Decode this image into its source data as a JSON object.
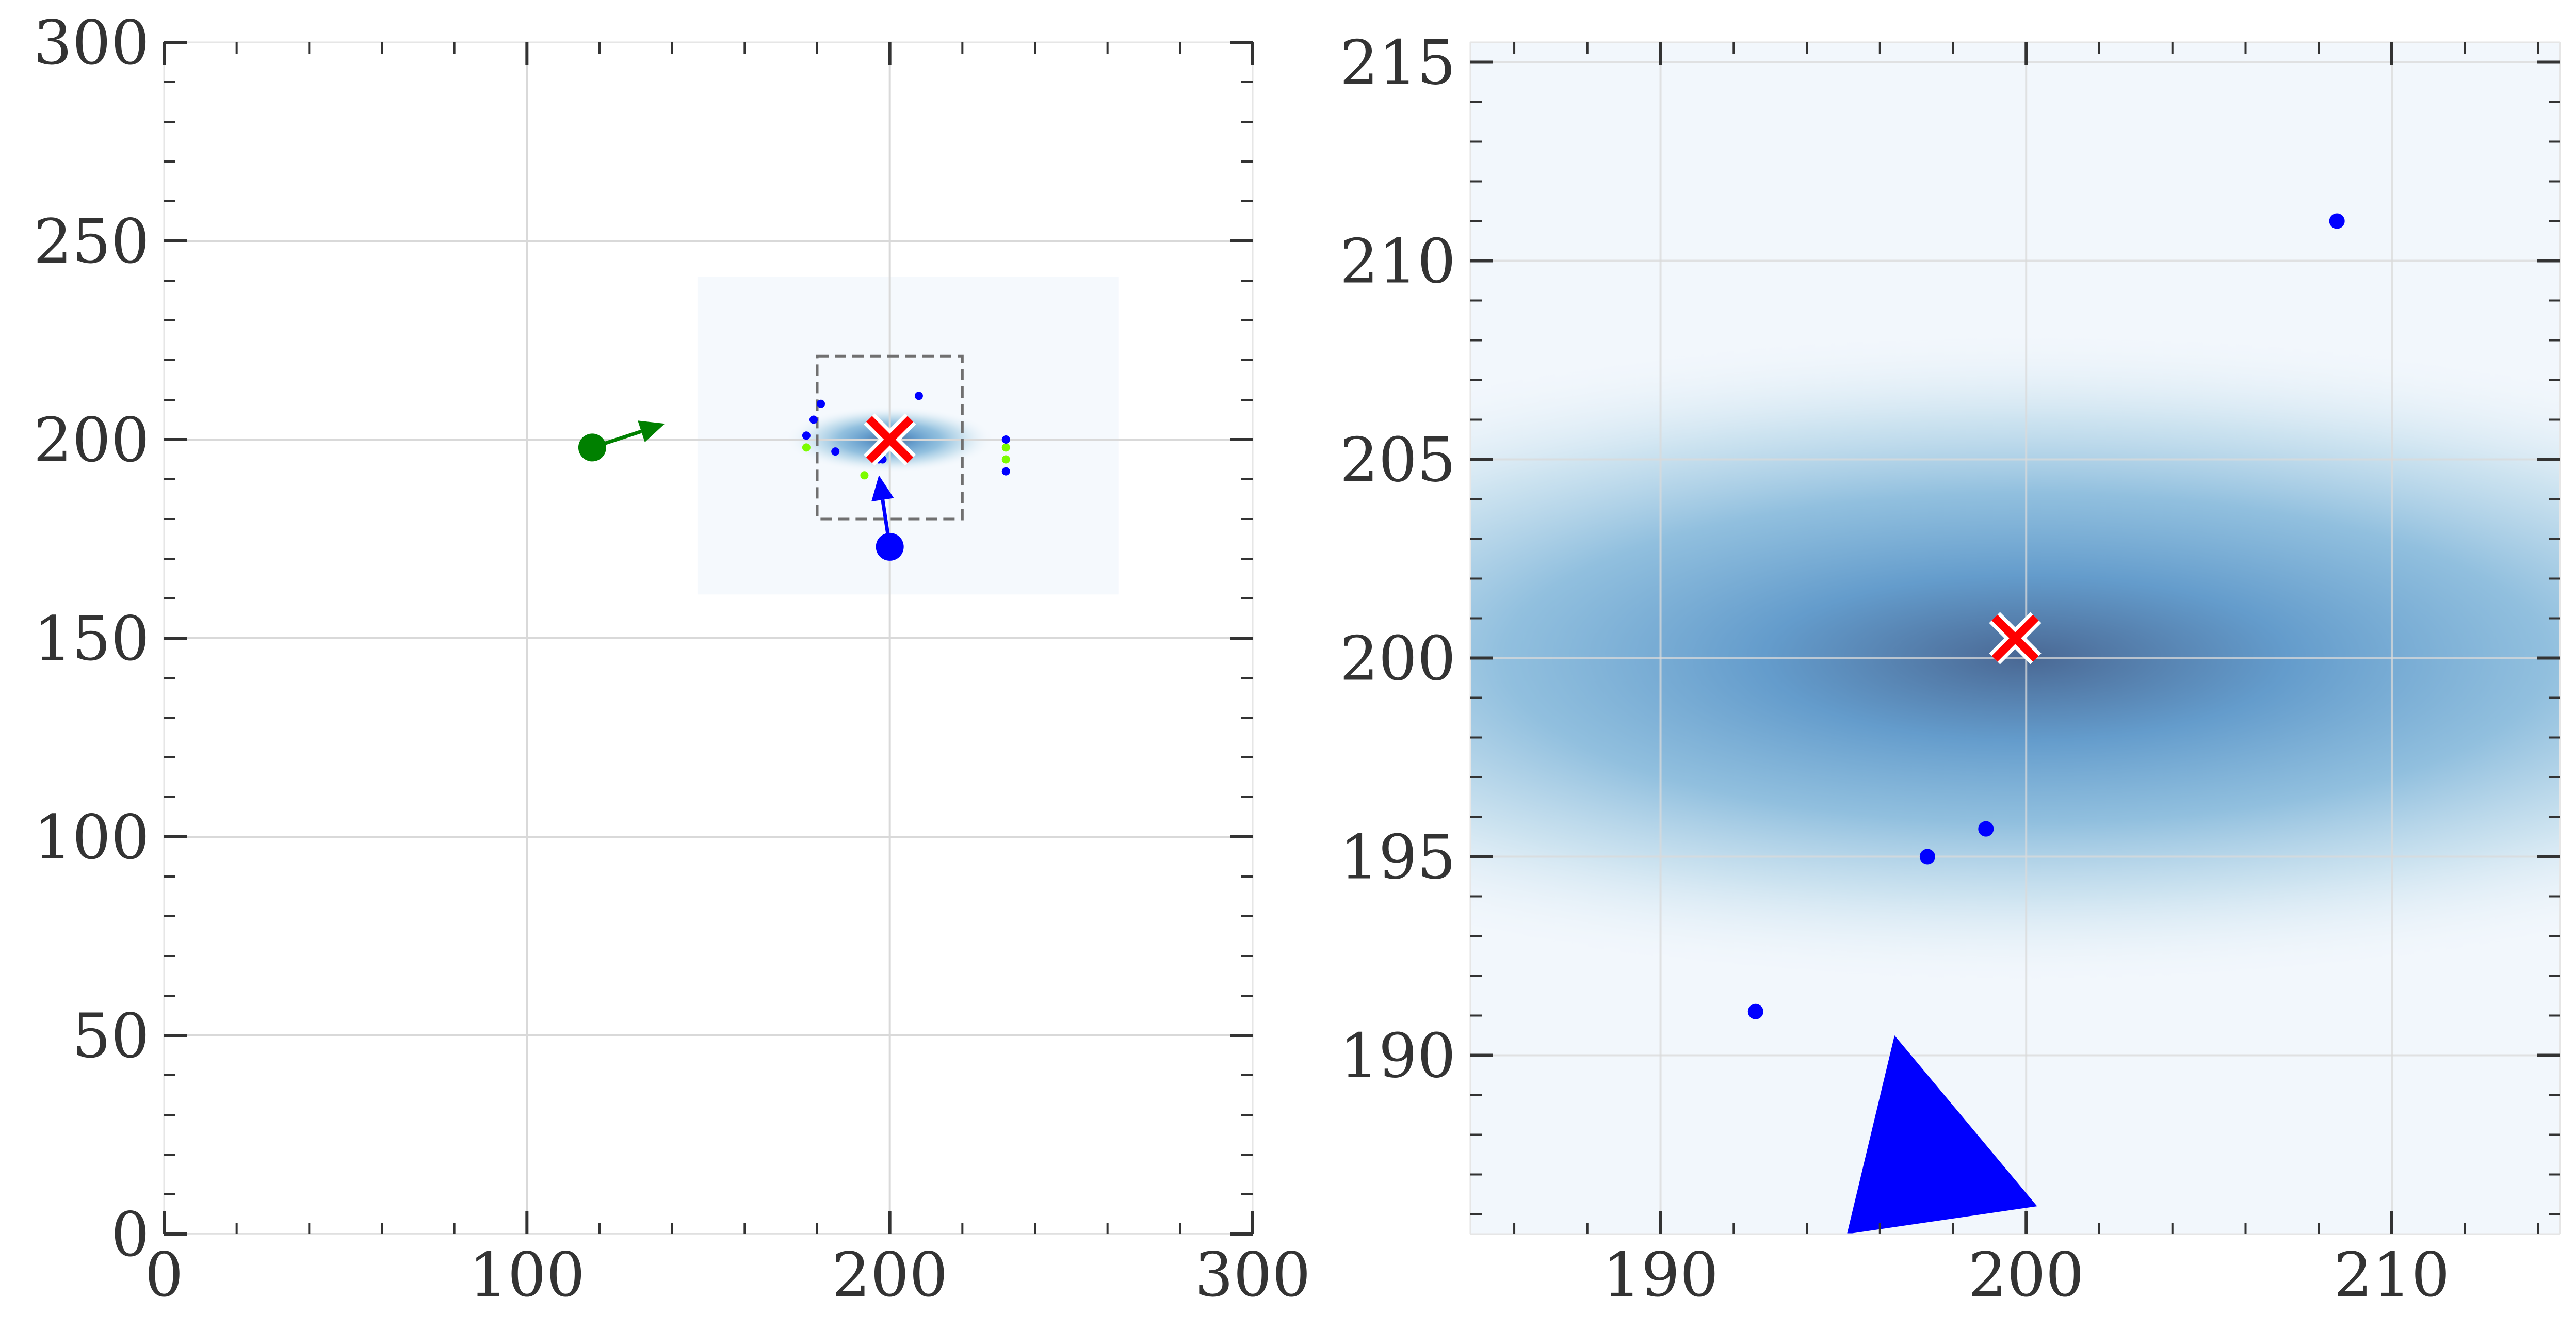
{
  "chart_data": [
    {
      "type": "scatter",
      "panel": "left",
      "title": "",
      "xlabel": "",
      "ylabel": "",
      "xlim": [
        0,
        300
      ],
      "ylim": [
        0,
        300
      ],
      "xticks": [
        "0",
        "100",
        "200",
        "300"
      ],
      "yticks": [
        "0",
        "50",
        "100",
        "150",
        "200",
        "250",
        "300"
      ],
      "xtick_values": [
        0,
        100,
        200,
        300
      ],
      "ytick_values": [
        0,
        50,
        100,
        150,
        200,
        250,
        300
      ],
      "grid": true,
      "density": {
        "center": [
          200,
          200
        ],
        "extent": {
          "x": [
            147,
            263
          ],
          "y": [
            161,
            241
          ]
        },
        "sigma": [
          11,
          3.2
        ],
        "colormap": "Blues"
      },
      "zoom_box": {
        "x": [
          180,
          220
        ],
        "y": [
          180,
          221
        ]
      },
      "target_marker": {
        "x": 200,
        "y": 200,
        "symbol": "x",
        "color": "#ff0000"
      },
      "agents": [
        {
          "x": 118,
          "y": 198,
          "dx": 20,
          "dy": 6,
          "color": "#008000"
        },
        {
          "x": 200,
          "y": 173,
          "dx": -3,
          "dy": 18,
          "color": "#0000ff"
        }
      ],
      "particles_blue": [
        {
          "x": 181,
          "y": 209
        },
        {
          "x": 179,
          "y": 205
        },
        {
          "x": 185,
          "y": 197
        },
        {
          "x": 208,
          "y": 211
        },
        {
          "x": 232,
          "y": 200
        },
        {
          "x": 232,
          "y": 192
        },
        {
          "x": 198,
          "y": 195
        },
        {
          "x": 197,
          "y": 195
        },
        {
          "x": 177,
          "y": 201
        }
      ],
      "particles_green": [
        {
          "x": 177,
          "y": 198
        },
        {
          "x": 232,
          "y": 198
        },
        {
          "x": 232,
          "y": 195
        },
        {
          "x": 193,
          "y": 191
        }
      ]
    },
    {
      "type": "scatter",
      "panel": "right",
      "title": "",
      "xlabel": "",
      "ylabel": "",
      "xlim": [
        184.8,
        214.6
      ],
      "ylim": [
        185.5,
        215.5
      ],
      "xticks": [
        "190",
        "200",
        "210"
      ],
      "yticks": [
        "190",
        "195",
        "200",
        "205",
        "210",
        "215"
      ],
      "xtick_values": [
        190,
        200,
        210
      ],
      "ytick_values": [
        190,
        195,
        200,
        205,
        210,
        215
      ],
      "grid": true,
      "density": {
        "center": [
          200,
          200
        ],
        "sigma": [
          11,
          3.2
        ],
        "colormap": "Blues"
      },
      "target_marker": {
        "x": 199.7,
        "y": 200.5,
        "symbol": "x",
        "color": "#ff0000"
      },
      "particles_blue": [
        {
          "x": 208.5,
          "y": 211
        },
        {
          "x": 198.9,
          "y": 195.7
        },
        {
          "x": 197.3,
          "y": 195
        },
        {
          "x": 192.6,
          "y": 191.1
        }
      ],
      "arrow_head": {
        "points": [
          [
            196.4,
            190.5
          ],
          [
            200.3,
            186.2
          ],
          [
            195.1,
            185.5
          ]
        ],
        "color": "#0000ff"
      }
    }
  ]
}
